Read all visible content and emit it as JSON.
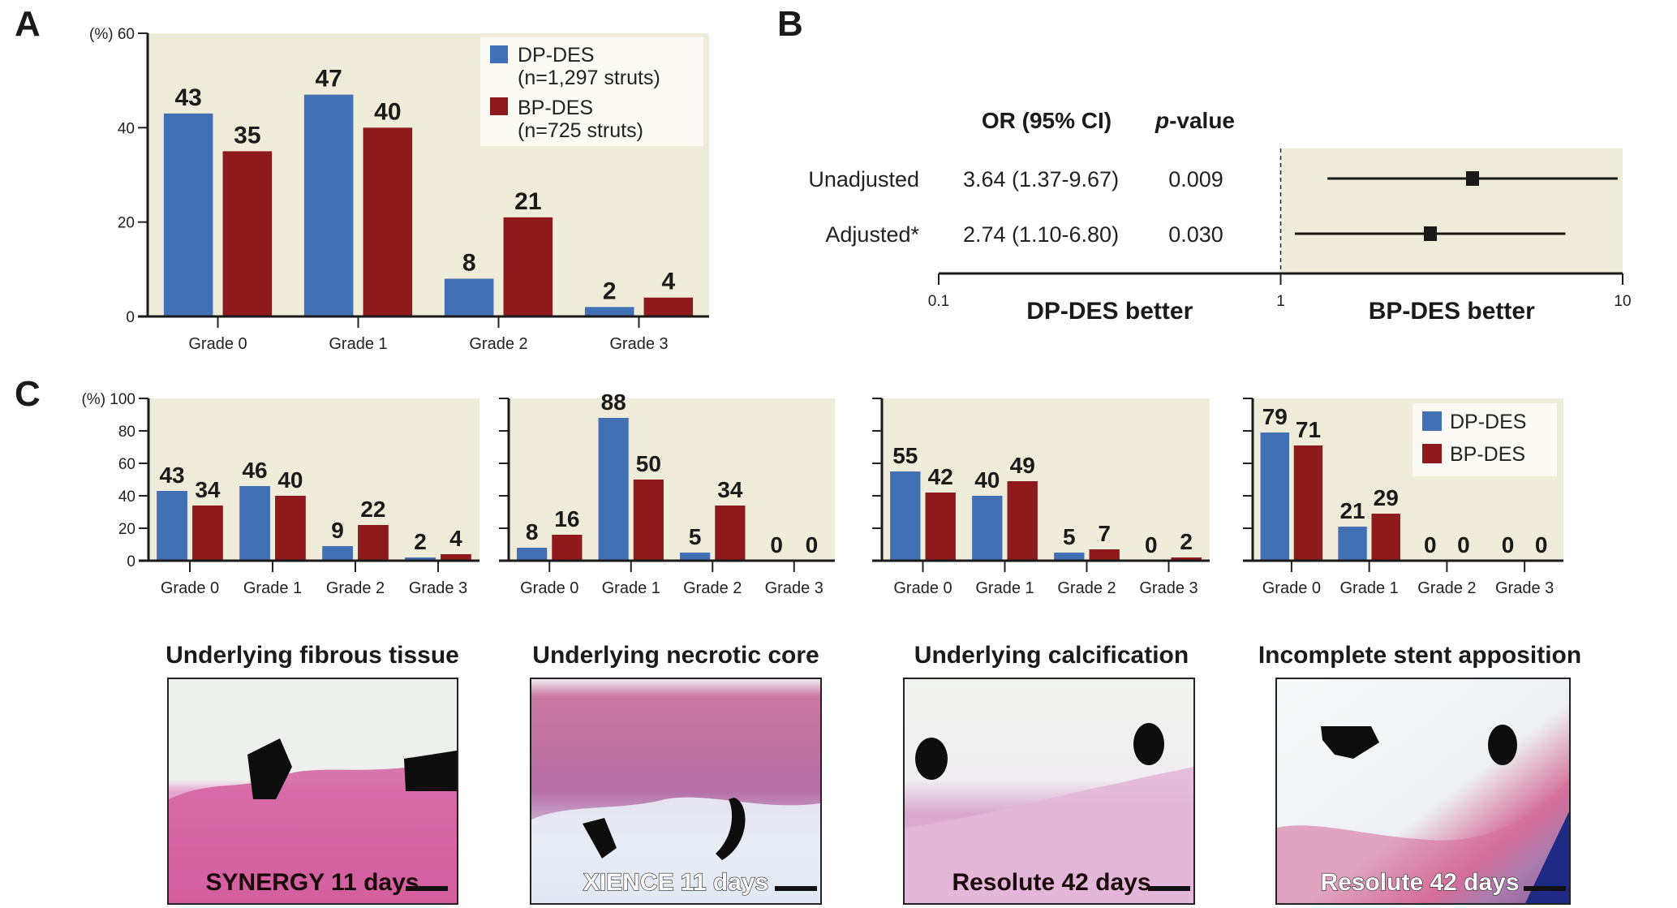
{
  "colors": {
    "dp_des": "#4270b4",
    "bp_des": "#8f1a1c",
    "plot_bg": "#f0ecda",
    "legend_bg": "#fbfaf4"
  },
  "chart_data": [
    {
      "id": "A",
      "panel_letter": "A",
      "type": "bar",
      "ylabel": "(%)",
      "ylim": [
        0,
        60
      ],
      "yticks": [
        0,
        20,
        40,
        60
      ],
      "categories": [
        "Grade 0",
        "Grade 1",
        "Grade 2",
        "Grade 3"
      ],
      "series": [
        {
          "name": "DP-DES",
          "legend_label": "DP-DES",
          "legend_sub": "(n=1,297 struts)",
          "values": [
            43,
            47,
            8,
            2
          ]
        },
        {
          "name": "BP-DES",
          "legend_label": "BP-DES",
          "legend_sub": "(n=725 struts)",
          "values": [
            35,
            40,
            21,
            4
          ]
        }
      ],
      "legend": "top-right",
      "grid": false
    },
    {
      "id": "B",
      "panel_letter": "B",
      "type": "scatter",
      "subtype": "forest-plot",
      "xscale": "log",
      "xlim": [
        0.1,
        10
      ],
      "xticks": [
        "0.1",
        "1",
        "10"
      ],
      "reference_line": 1,
      "column_headers": {
        "or": "OR (95% CI)",
        "p_italic": "p",
        "p_rest": "-value"
      },
      "zone_labels": {
        "left": "DP-DES better",
        "right": "BP-DES better"
      },
      "rows": [
        {
          "label": "Unadjusted",
          "or_text": "3.64 (1.37-9.67)",
          "p_text": "0.009",
          "or": 3.64,
          "lo": 1.37,
          "hi": 9.67
        },
        {
          "label": "Adjusted*",
          "or_text": "2.74 (1.10-6.80)",
          "p_text": "0.030",
          "or": 2.74,
          "lo": 1.1,
          "hi": 6.8
        }
      ]
    },
    {
      "id": "C1",
      "panel_letter": "C",
      "type": "bar",
      "ylabel": "(%)",
      "ylim": [
        0,
        100
      ],
      "yticks": [
        0,
        20,
        40,
        60,
        80,
        100
      ],
      "categories": [
        "Grade 0",
        "Grade 1",
        "Grade 2",
        "Grade 3"
      ],
      "series": [
        {
          "name": "DP-DES",
          "values": [
            43,
            46,
            9,
            2
          ]
        },
        {
          "name": "BP-DES",
          "values": [
            34,
            40,
            22,
            4
          ]
        }
      ],
      "title": "Underlying fibrous tissue",
      "image_caption": "SYNERGY 11 days"
    },
    {
      "id": "C2",
      "type": "bar",
      "ylim": [
        0,
        100
      ],
      "yticks": [
        0,
        20,
        40,
        60,
        80,
        100
      ],
      "categories": [
        "Grade 0",
        "Grade 1",
        "Grade 2",
        "Grade 3"
      ],
      "series": [
        {
          "name": "DP-DES",
          "values": [
            8,
            88,
            5,
            0
          ]
        },
        {
          "name": "BP-DES",
          "values": [
            16,
            50,
            34,
            0
          ]
        }
      ],
      "title": "Underlying necrotic core",
      "image_caption": "XIENCE 11 days"
    },
    {
      "id": "C3",
      "type": "bar",
      "ylim": [
        0,
        100
      ],
      "yticks": [
        0,
        20,
        40,
        60,
        80,
        100
      ],
      "categories": [
        "Grade 0",
        "Grade 1",
        "Grade 2",
        "Grade 3"
      ],
      "series": [
        {
          "name": "DP-DES",
          "values": [
            55,
            40,
            5,
            0
          ]
        },
        {
          "name": "BP-DES",
          "values": [
            42,
            49,
            7,
            2
          ]
        }
      ],
      "title": "Underlying calcification",
      "image_caption": "Resolute 42 days"
    },
    {
      "id": "C4",
      "type": "bar",
      "ylim": [
        0,
        100
      ],
      "yticks": [
        0,
        20,
        40,
        60,
        80,
        100
      ],
      "categories": [
        "Grade 0",
        "Grade 1",
        "Grade 2",
        "Grade 3"
      ],
      "series": [
        {
          "name": "DP-DES",
          "legend_label": "DP-DES",
          "values": [
            79,
            21,
            0,
            0
          ]
        },
        {
          "name": "BP-DES",
          "legend_label": "BP-DES",
          "values": [
            71,
            29,
            0,
            0
          ]
        }
      ],
      "legend": "top-right",
      "title": "Incomplete stent apposition",
      "image_caption": "Resolute 42 days"
    }
  ]
}
